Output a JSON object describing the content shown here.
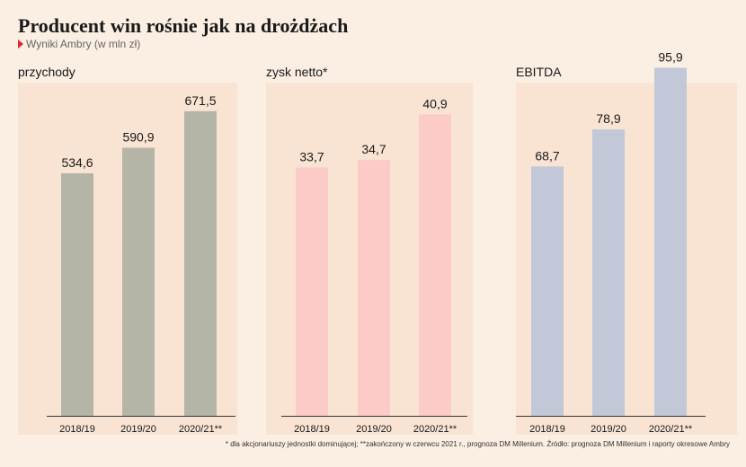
{
  "header": {
    "title": "Producent win rośnie jak na drożdżach",
    "subtitle": "Wyniki Ambry (w mln zł)"
  },
  "footnote": "* dla akcjonariuszy jednostki dominującej; **zakończony w czerwcu 2021 r., prognoza DM Millenium. Źródło: prognoza DM Millenium i raporty okresowe Ambry",
  "chart_data": [
    {
      "type": "bar",
      "title": "przychody",
      "categories": [
        "2018/19",
        "2019/20",
        "2020/21**"
      ],
      "values": [
        534.6,
        590.9,
        671.5
      ],
      "value_labels": [
        "534,6",
        "590,9",
        "671,5"
      ],
      "ylim": [
        0,
        780
      ],
      "color": "#b5b5a7",
      "grid": false
    },
    {
      "type": "bar",
      "title": "zysk netto*",
      "categories": [
        "2018/19",
        "2019/20",
        "2020/21**"
      ],
      "values": [
        33.7,
        34.7,
        40.9
      ],
      "value_labels": [
        "33,7",
        "34,7",
        "40,9"
      ],
      "ylim": [
        0,
        48
      ],
      "color": "#fccbc8",
      "grid": false
    },
    {
      "type": "bar",
      "title": "EBITDA",
      "categories": [
        "2018/19",
        "2019/20",
        "2020/21**"
      ],
      "values": [
        68.7,
        78.9,
        95.9
      ],
      "value_labels": [
        "68,7",
        "78,9",
        "95,9"
      ],
      "ylim": [
        0,
        97.5
      ],
      "color": "#c2c8d8",
      "grid": false
    }
  ]
}
